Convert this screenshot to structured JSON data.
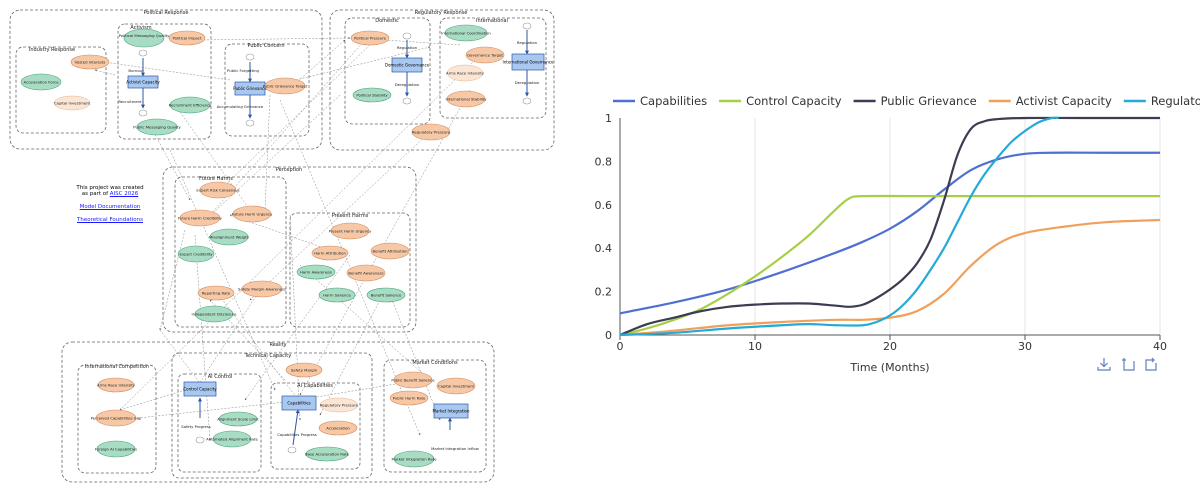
{
  "diagram": {
    "groups": {
      "political_response": "Political Response",
      "regulatory_response": "Regulatory Response",
      "industry_response": "Industry Response",
      "activism": "Activism",
      "public_concern": "Public Concern",
      "domestic": "Domestic",
      "international": "International",
      "perception": "Perception",
      "future_harms": "Future Harms",
      "present_harms": "Present Harms",
      "reality": "Reality",
      "technical_capacity": "Technical Capacity",
      "international_competition": "International Competition",
      "ai_control": "AI Control",
      "ai_capabilities": "AI Capabilities",
      "market_conditions": "Market Conditions"
    },
    "nodes": {
      "political_messaging_quality_top": "Political Messaging Quality",
      "political_impact": "Political Impact",
      "vested_interests": "Vested Interests",
      "acceleration_force": "Acceleration Force",
      "capital_investment_top": "Capital Investment",
      "activist_capacity": "Activist Capacity",
      "burnout": "Burnout",
      "recruitment": "Recruitment",
      "recruitment_efficiency": "Recruitment Efficiency",
      "public_messaging_quality": "Public Messaging Quality",
      "public_forgetting": "Public Forgetting",
      "public_grievance": "Public Grievance",
      "public_grievance_target": "Public Grievance Target",
      "accumulating_grievance": "Accumulating Grievance",
      "political_pressure": "Political Pressure",
      "regulation": "Regulation",
      "domestic_governance": "Domestic Governance",
      "deregulation": "Deregulation",
      "political_stability": "Political Stability",
      "international_coordination": "International Coordination",
      "governance_target": "Governance Target",
      "arms_race_intensity_top": "Arms Race Intensity",
      "international_stability": "International Stability",
      "regulation_intl": "Regulation",
      "international_governance": "International Governance",
      "deregulation_intl": "Deregulation",
      "regulatory_pressure_top": "Regulatory Pressure",
      "expert_risk_consensus": "Expert Risk Consensus",
      "future_harm_credibility": "Future Harm Credibility",
      "future_harm_urgency": "Future Harm Urgency",
      "misalignment_weight": "Misalignment Weight",
      "expert_credibility": "Expert Credibility",
      "reporting_rate": "Reporting Rate",
      "safety_margin_awareness": "Safety Margin Awareness",
      "independent_disclosure": "Independent Disclosure",
      "present_harm_urgency": "Present Harm Urgency",
      "harm_attribution": "Harm Attribution",
      "benefit_attribution": "Benefit Attribution",
      "harm_awareness": "Harm Awareness",
      "benefit_awareness": "Benefit Awareness",
      "harm_salience": "Harm Salience",
      "benefit_salience": "Benefit Salience",
      "arms_race_intensity": "Arms Race Intensity",
      "perceived_capabilities_gap": "Perceived Capabilities Gap",
      "foreign_ai_capabilities": "Foreign AI Capabilities",
      "safety_margin": "Safety Margin",
      "control_capacity": "Control Capacity",
      "safety_progress": "Safety Progress",
      "alignment_scale_limit": "Alignment Scale Limit",
      "automated_alignment_rate": "Automated Alignment Rate",
      "capabilities": "Capabilities",
      "regulatory_pressure": "Regulatory Pressure",
      "capabilities_progress": "Capabilities Progress",
      "acceleration": "Acceleration",
      "base_acceleration_rate": "Base Acceleration Rate",
      "public_benefit_salience": "Public Benefit Salience",
      "capital_investment": "Capital Investment",
      "public_harm_rate": "Public Harm Rate",
      "market_integration": "Market Integration",
      "market_integration_inflow": "Market Integration Inflow",
      "market_integration_rate": "Market Integration Rate"
    },
    "project_note_line1": "This project was created",
    "project_note_line2": "as part of",
    "project_link": "AISC 2026",
    "doc_link": "Model Documentation",
    "theory_link": "Theoretical Foundations"
  },
  "chart_data": {
    "type": "line",
    "legend_position": "top",
    "xlabel": "Time (Months)",
    "ylabel": "",
    "xlim": [
      0,
      40
    ],
    "ylim": [
      0,
      1
    ],
    "xticks": [
      0,
      10,
      20,
      30,
      40
    ],
    "yticks": [
      0,
      0.2,
      0.4,
      0.6,
      0.8,
      1
    ],
    "grid": "vertical",
    "series": [
      {
        "name": "Capabilities",
        "color": "#4f6fd1",
        "x": [
          0,
          4,
          8,
          12,
          16,
          18,
          20,
          22,
          24,
          26,
          28,
          30,
          32,
          36,
          40
        ],
        "y": [
          0.1,
          0.15,
          0.21,
          0.29,
          0.38,
          0.43,
          0.49,
          0.57,
          0.67,
          0.76,
          0.81,
          0.835,
          0.84,
          0.84,
          0.84
        ]
      },
      {
        "name": "Control Capacity",
        "color": "#a6cf45",
        "x": [
          0,
          2,
          4,
          6,
          8,
          10,
          12,
          14,
          16,
          17,
          18,
          22,
          30,
          40
        ],
        "y": [
          0,
          0.03,
          0.07,
          0.12,
          0.19,
          0.27,
          0.36,
          0.46,
          0.58,
          0.63,
          0.64,
          0.64,
          0.64,
          0.64
        ]
      },
      {
        "name": "Public Grievance",
        "color": "#3c3c52",
        "x": [
          0,
          2,
          4,
          6,
          8,
          10,
          12,
          14,
          16,
          17,
          18,
          19,
          20,
          21,
          22,
          23,
          24,
          25,
          26,
          27,
          28,
          30,
          34,
          40
        ],
        "y": [
          0,
          0.05,
          0.08,
          0.11,
          0.13,
          0.14,
          0.145,
          0.145,
          0.135,
          0.13,
          0.14,
          0.17,
          0.21,
          0.26,
          0.33,
          0.44,
          0.62,
          0.83,
          0.95,
          0.985,
          0.995,
          1,
          1,
          1
        ]
      },
      {
        "name": "Activist Capacity",
        "color": "#f0a05a",
        "x": [
          0,
          4,
          8,
          12,
          16,
          18,
          20,
          22,
          24,
          26,
          28,
          30,
          33,
          36,
          40
        ],
        "y": [
          0,
          0.02,
          0.045,
          0.06,
          0.07,
          0.07,
          0.08,
          0.11,
          0.19,
          0.32,
          0.42,
          0.47,
          0.5,
          0.52,
          0.53
        ]
      },
      {
        "name": "Regulatory Pressure",
        "color": "#24aad6",
        "x": [
          0,
          4,
          8,
          12,
          14,
          16,
          18,
          19,
          20,
          21,
          22,
          23,
          24,
          25,
          26,
          27,
          28,
          29,
          30,
          31,
          32,
          32.5
        ],
        "y": [
          0,
          0.01,
          0.03,
          0.045,
          0.05,
          0.045,
          0.045,
          0.06,
          0.09,
          0.14,
          0.21,
          0.3,
          0.4,
          0.52,
          0.64,
          0.74,
          0.82,
          0.89,
          0.94,
          0.98,
          1.0,
          1.0
        ]
      }
    ]
  },
  "chart_toolbar": {
    "download_icon": "download-icon",
    "restore_icon": "restore-icon",
    "refresh_icon": "refresh-icon"
  }
}
